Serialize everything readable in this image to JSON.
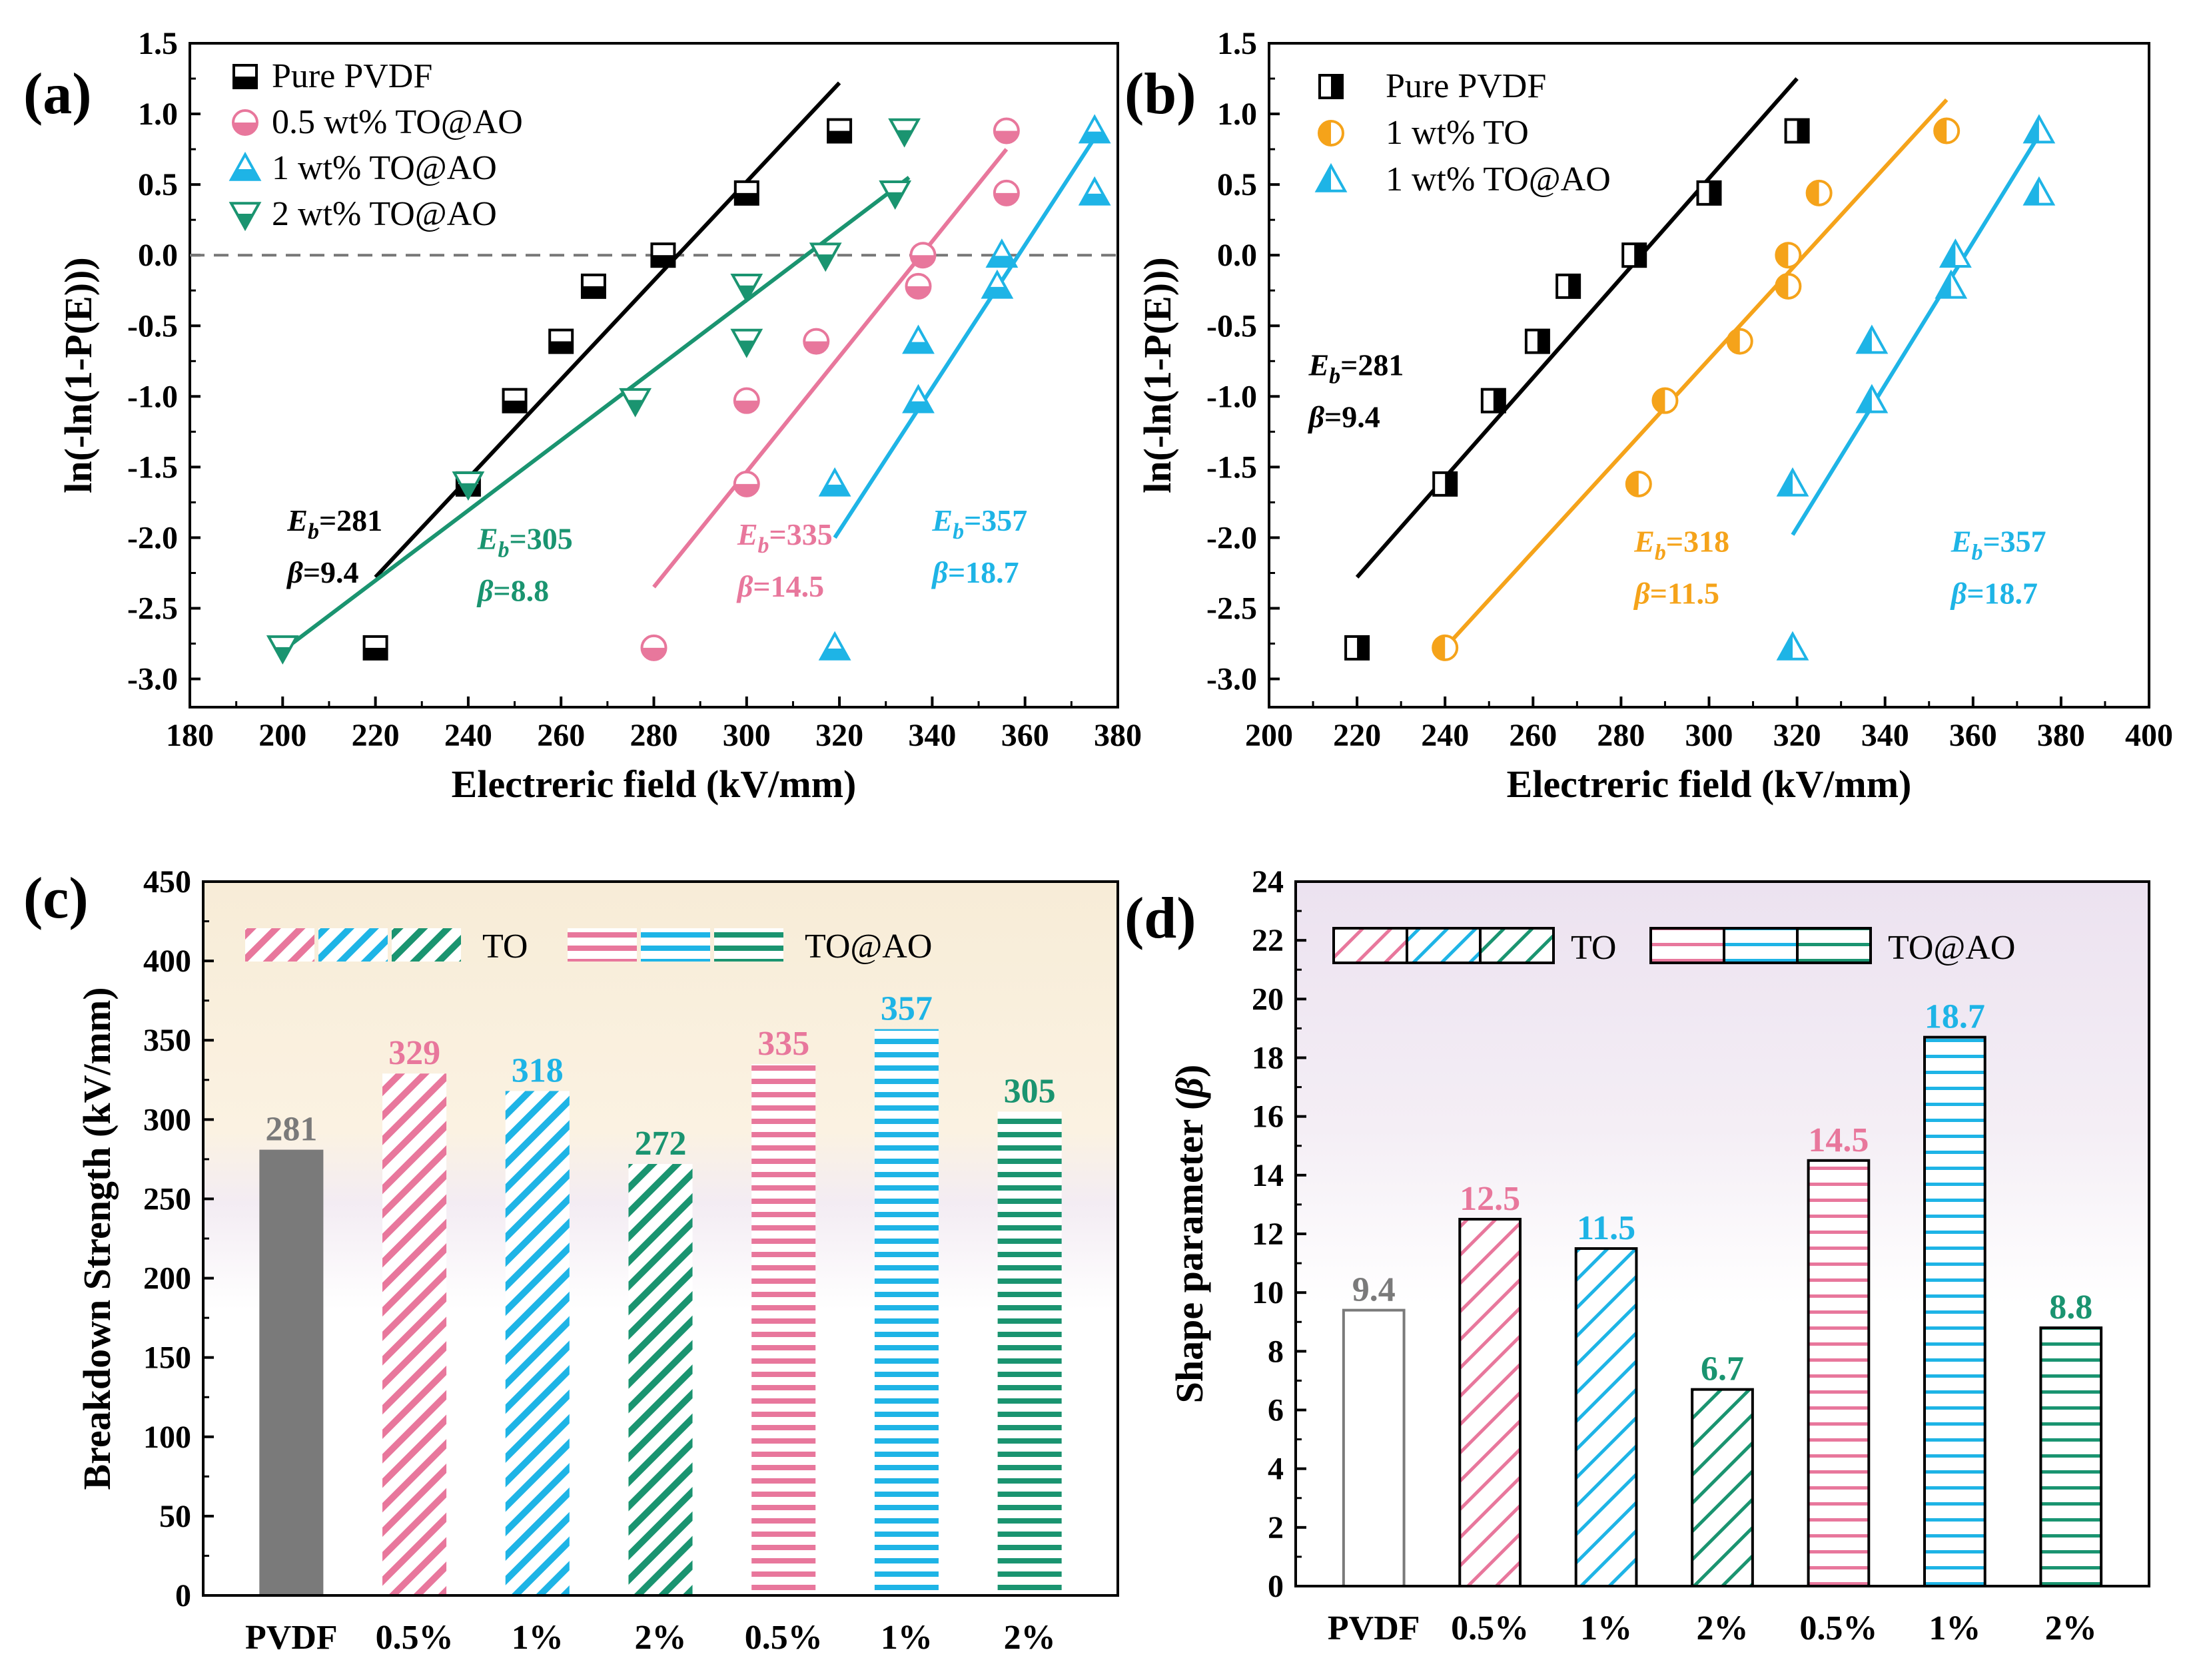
{
  "colors": {
    "black": "#000000",
    "pink": "#e8779c",
    "blue": "#1eb4e6",
    "green": "#1a9470",
    "orange": "#f5a31a",
    "gray": "#7a7a7a"
  },
  "chart_data": [
    {
      "id": "a",
      "panel_label": "(a)",
      "type": "scatter",
      "xlabel": "Electreric field (kV/mm)",
      "ylabel": "ln(-ln(1-P(E)))",
      "xlim": [
        180,
        380
      ],
      "ylim": [
        -3.2,
        1.5
      ],
      "xticks": [
        180,
        200,
        220,
        240,
        260,
        280,
        300,
        320,
        340,
        360,
        380
      ],
      "yticks": [
        -3.0,
        -2.5,
        -2.0,
        -1.5,
        -1.0,
        -0.5,
        0.0,
        0.5,
        1.0,
        1.5
      ],
      "xtick_labels": [
        "180",
        "200",
        "220",
        "240",
        "260",
        "280",
        "300",
        "320",
        "340",
        "360",
        "380"
      ],
      "ytick_labels": [
        "-3.0",
        "-2.5",
        "-2.0",
        "-1.5",
        "-1.0",
        "-0.5",
        "0.0",
        "0.5",
        "1.0",
        "1.5"
      ],
      "reference_line_y": 0,
      "series": [
        {
          "name": "Pure PVDF",
          "color": "#000000",
          "marker": "square-half",
          "x": [
            220,
            240,
            250,
            260,
            267,
            282,
            300,
            320
          ],
          "y": [
            -2.78,
            -1.62,
            -1.03,
            -0.61,
            -0.22,
            0.0,
            0.44,
            0.88
          ],
          "fit": [
            [
              220,
              -2.28
            ],
            [
              320,
              1.22
            ]
          ],
          "annotation": {
            "eb": "281",
            "beta": "9.4",
            "xy": [
              201,
              -1.95
            ]
          }
        },
        {
          "name": "0.5 wt% TO@AO",
          "color": "#e8779c",
          "marker": "circle-half",
          "x": [
            280,
            300,
            300,
            315,
            337,
            338,
            356,
            356
          ],
          "y": [
            -2.78,
            -1.62,
            -1.03,
            -0.61,
            -0.22,
            0.0,
            0.44,
            0.88
          ],
          "fit": [
            [
              280,
              -2.35
            ],
            [
              356,
              0.75
            ]
          ],
          "annotation": {
            "eb": "335",
            "beta": "14.5",
            "xy": [
              298,
              -2.05
            ]
          }
        },
        {
          "name": "1 wt% TO@AO",
          "color": "#1eb4e6",
          "marker": "triangle-up",
          "x": [
            319,
            319,
            337,
            337,
            354,
            355,
            375,
            375
          ],
          "y": [
            -2.78,
            -1.62,
            -1.03,
            -0.61,
            -0.22,
            0.0,
            0.44,
            0.88
          ],
          "fit": [
            [
              319,
              -2.0
            ],
            [
              376,
              0.88
            ]
          ],
          "annotation": {
            "eb": "357",
            "beta": "18.7",
            "xy": [
              340,
              -1.95
            ]
          }
        },
        {
          "name": "2 wt% TO@AO",
          "color": "#1a9470",
          "marker": "triangle-down",
          "x": [
            200,
            240,
            276,
            300,
            300,
            317,
            332,
            334
          ],
          "y": [
            -2.78,
            -1.62,
            -1.03,
            -0.61,
            -0.22,
            0.0,
            0.44,
            0.88
          ],
          "fit": [
            [
              200,
              -2.8
            ],
            [
              335,
              0.55
            ]
          ],
          "annotation": {
            "eb": "305",
            "beta": "8.8",
            "xy": [
              242,
              -2.08
            ]
          }
        }
      ]
    },
    {
      "id": "b",
      "panel_label": "(b)",
      "type": "scatter",
      "xlabel": "Electreric field (kV/mm)",
      "ylabel": "ln(-ln(1-P(E)))",
      "xlim": [
        200,
        400
      ],
      "ylim": [
        -3.2,
        1.5
      ],
      "xticks": [
        200,
        220,
        240,
        260,
        280,
        300,
        320,
        340,
        360,
        380,
        400
      ],
      "yticks": [
        -3.0,
        -2.5,
        -2.0,
        -1.5,
        -1.0,
        -0.5,
        0.0,
        0.5,
        1.0,
        1.5
      ],
      "xtick_labels": [
        "200",
        "220",
        "240",
        "260",
        "280",
        "300",
        "320",
        "340",
        "360",
        "380",
        "400"
      ],
      "ytick_labels": [
        "-3.0",
        "-2.5",
        "-2.0",
        "-1.5",
        "-1.0",
        "-0.5",
        "0.0",
        "0.5",
        "1.0",
        "1.5"
      ],
      "series": [
        {
          "name": "Pure PVDF",
          "color": "#000000",
          "marker": "square-half-v",
          "x": [
            220,
            240,
            251,
            261,
            268,
            283,
            300,
            320
          ],
          "y": [
            -2.78,
            -1.62,
            -1.03,
            -0.61,
            -0.22,
            0.0,
            0.44,
            0.88
          ],
          "fit": [
            [
              220,
              -2.28
            ],
            [
              320,
              1.25
            ]
          ],
          "annotation": {
            "eb": "281",
            "beta": "9.4",
            "xy": [
              209,
              -0.85
            ]
          }
        },
        {
          "name": "1 wt% TO",
          "color": "#f5a31a",
          "marker": "circle-half-v",
          "x": [
            240,
            284,
            290,
            307,
            318,
            318,
            325,
            354
          ],
          "y": [
            -2.78,
            -1.62,
            -1.03,
            -0.61,
            -0.22,
            0.0,
            0.44,
            0.88
          ],
          "fit": [
            [
              240,
              -2.78
            ],
            [
              354,
              1.1
            ]
          ],
          "annotation": {
            "eb": "318",
            "beta": "11.5",
            "xy": [
              283,
              -2.1
            ]
          }
        },
        {
          "name": "1 wt% TO@AO",
          "color": "#1eb4e6",
          "marker": "triangle-half",
          "x": [
            319,
            319,
            337,
            337,
            355,
            356,
            375,
            375
          ],
          "y": [
            -2.78,
            -1.62,
            -1.03,
            -0.61,
            -0.22,
            0.0,
            0.44,
            0.88
          ],
          "fit": [
            [
              319,
              -1.98
            ],
            [
              376,
              0.9
            ]
          ],
          "annotation": {
            "eb": "357",
            "beta": "18.7",
            "xy": [
              355,
              -2.1
            ]
          }
        }
      ]
    },
    {
      "id": "c",
      "panel_label": "(c)",
      "type": "bar",
      "ylabel": "Breakdown Strength (kV/mm)",
      "ylim": [
        0,
        450
      ],
      "yticks": [
        0,
        50,
        100,
        150,
        200,
        250,
        300,
        350,
        400,
        450
      ],
      "ytick_labels": [
        "0",
        "50",
        "100",
        "150",
        "200",
        "250",
        "300",
        "350",
        "400",
        "450"
      ],
      "categories": [
        "PVDF",
        "0.5%",
        "1%",
        "2%",
        "0.5%",
        "1%",
        "2%"
      ],
      "values": [
        281,
        329,
        318,
        272,
        335,
        357,
        305
      ],
      "value_labels": [
        "281",
        "329",
        "318",
        "272",
        "335",
        "357",
        "305"
      ],
      "bar_colors": [
        "#7a7a7a",
        "#e8779c",
        "#1eb4e6",
        "#1a9470",
        "#e8779c",
        "#1eb4e6",
        "#1a9470"
      ],
      "bar_patterns": [
        "solid",
        "diag",
        "diag",
        "diag",
        "horiz",
        "horiz",
        "horiz"
      ],
      "legend": {
        "to": "TO",
        "toao": "TO@AO"
      }
    },
    {
      "id": "d",
      "panel_label": "(d)",
      "type": "bar",
      "ylabel": "Shape parameter (β)",
      "ylim": [
        0,
        24
      ],
      "yticks": [
        0,
        2,
        4,
        6,
        8,
        10,
        12,
        14,
        16,
        18,
        20,
        22,
        24
      ],
      "ytick_labels": [
        "0",
        "2",
        "4",
        "6",
        "8",
        "10",
        "12",
        "14",
        "16",
        "18",
        "20",
        "22",
        "24"
      ],
      "categories": [
        "PVDF",
        "0.5%",
        "1%",
        "2%",
        "0.5%",
        "1%",
        "2%"
      ],
      "values": [
        9.4,
        12.5,
        11.5,
        6.7,
        14.5,
        18.7,
        8.8
      ],
      "value_labels": [
        "9.4",
        "12.5",
        "11.5",
        "6.7",
        "14.5",
        "18.7",
        "8.8"
      ],
      "bar_colors": [
        "#7a7a7a",
        "#e8779c",
        "#1eb4e6",
        "#1a9470",
        "#e8779c",
        "#1eb4e6",
        "#1a9470"
      ],
      "bar_patterns": [
        "none",
        "diag",
        "diag",
        "diag",
        "horiz",
        "horiz",
        "horiz"
      ],
      "legend": {
        "to": "TO",
        "toao": "TO@AO"
      }
    }
  ]
}
